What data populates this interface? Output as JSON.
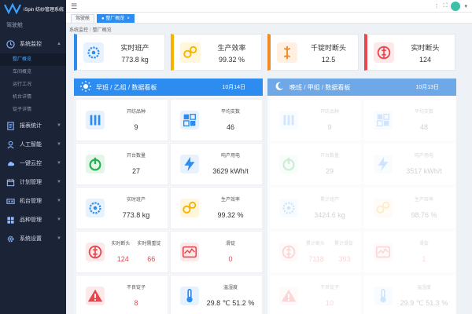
{
  "app": {
    "title": "iSpin 纺纱管理系统"
  },
  "sidebar": {
    "workspace": "驾驶舱",
    "groups": [
      {
        "label": "系统监控",
        "icon": "monitor-icon",
        "expanded": true,
        "subs": [
          "整厂概览",
          "车间概览",
          "运行工况",
          "机台详情",
          "锭子详情"
        ]
      },
      {
        "label": "报表统计",
        "icon": "report-icon"
      },
      {
        "label": "人工智能",
        "icon": "ai-icon"
      },
      {
        "label": "一键云控",
        "icon": "cloud-icon"
      },
      {
        "label": "计划管理",
        "icon": "calendar-icon"
      },
      {
        "label": "机台管理",
        "icon": "machine-icon"
      },
      {
        "label": "品种管理",
        "icon": "variety-icon"
      },
      {
        "label": "系统设置",
        "icon": "gear-icon"
      }
    ]
  },
  "tabs": [
    {
      "label": "驾驶舱"
    },
    {
      "label": "整厂概览"
    }
  ],
  "breadcrumb": {
    "root": "系统监控",
    "current": "整厂概览"
  },
  "kpis": [
    {
      "label": "实时班产",
      "value": "773.8 kg",
      "color": "#2d8cf0",
      "icon": "production-icon"
    },
    {
      "label": "生产效率",
      "value": "99.32 %",
      "color": "#f5b300",
      "icon": "efficiency-icon"
    },
    {
      "label": "千锭时断头",
      "value": "12.5",
      "color": "#f08a24",
      "icon": "spindle-icon"
    },
    {
      "label": "实时断头",
      "value": "124",
      "color": "#e5484d",
      "icon": "breakage-icon"
    }
  ],
  "panels": [
    {
      "title": "早班 / 乙组 / 数据看板",
      "date": "10月14日",
      "color": "#2d8cf0",
      "cells": [
        {
          "label": "开纺品种",
          "value": "9",
          "icon": "variety-icon",
          "color": "#2d8cf0"
        },
        {
          "label": "平均支数",
          "value": "46",
          "icon": "count-icon",
          "color": "#2d8cf0"
        },
        {
          "label": "开台数量",
          "value": "27",
          "icon": "power-icon",
          "color": "#23b14d"
        },
        {
          "label": "吨产用电",
          "value": "3629 kWh/t",
          "icon": "lightning-icon",
          "color": "#2d8cf0"
        },
        {
          "label": "实时班产",
          "value": "773.8 kg",
          "icon": "production-icon",
          "color": "#2d8cf0"
        },
        {
          "label": "生产效率",
          "value": "99.32 %",
          "icon": "efficiency-icon",
          "color": "#f5b300"
        },
        {
          "labels": [
            "实时断头",
            "实时需重锭"
          ],
          "values": [
            "124",
            "66"
          ],
          "icon": "breakage-icon",
          "color": "#e5484d",
          "red": true
        },
        {
          "label": "滑锭",
          "value": "0",
          "icon": "slip-icon",
          "color": "#e5484d",
          "red": true
        },
        {
          "label": "不良锭子",
          "value": "8",
          "icon": "warning-icon",
          "color": "#e5484d",
          "red": true
        },
        {
          "label": "温湿度",
          "value": "29.8 ℃   51.2 %",
          "icon": "thermometer-icon",
          "color": "#2d8cf0"
        }
      ]
    },
    {
      "title": "晚班 / 甲组 / 数据看板",
      "date": "10月13日",
      "color": "#6fa8e6",
      "cells": [
        {
          "label": "开纺品种",
          "value": "9",
          "icon": "variety-icon",
          "color": "#2d8cf0"
        },
        {
          "label": "平均支数",
          "value": "48",
          "icon": "count-icon",
          "color": "#2d8cf0"
        },
        {
          "label": "开台数量",
          "value": "29",
          "icon": "power-icon",
          "color": "#23b14d"
        },
        {
          "label": "吨产用电",
          "value": "3517 kWh/t",
          "icon": "lightning-icon",
          "color": "#2d8cf0"
        },
        {
          "label": "累计班产",
          "value": "3424.6 kg",
          "icon": "production-icon",
          "color": "#2d8cf0"
        },
        {
          "label": "生产效率",
          "value": "98.76 %",
          "icon": "efficiency-icon",
          "color": "#f5b300"
        },
        {
          "labels": [
            "累计断头",
            "累计滑锭"
          ],
          "values": [
            "7118",
            "393"
          ],
          "icon": "breakage-icon",
          "color": "#e5484d",
          "red": true
        },
        {
          "label": "滑锭",
          "value": "1",
          "icon": "slip-icon",
          "color": "#e5484d",
          "red": true
        },
        {
          "label": "不良锭子",
          "value": "10",
          "icon": "warning-icon",
          "color": "#e5484d",
          "red": true
        },
        {
          "label": "温湿度",
          "value": "29.9 ℃   51.3 %",
          "icon": "thermometer-icon",
          "color": "#2d8cf0"
        }
      ]
    }
  ]
}
